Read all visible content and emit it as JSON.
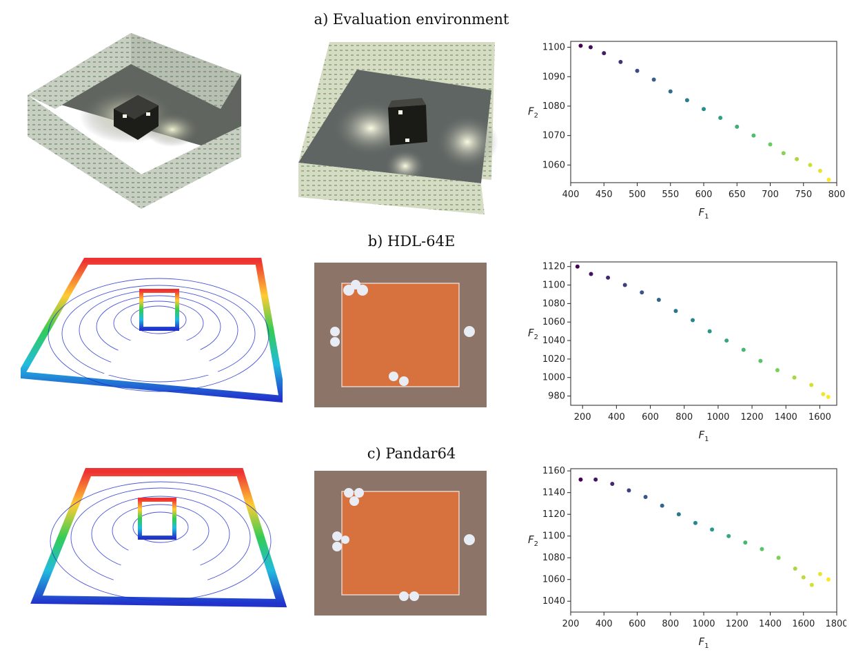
{
  "sections": [
    {
      "label": "a) Evaluation environment"
    },
    {
      "label": "b) HDL-64E"
    },
    {
      "label": "c) Pandar64"
    }
  ],
  "colors": {
    "wall_tile": "#d8dcd0",
    "floor": "#5a5f5c",
    "box": "#1a1b18",
    "lidar_blue": "#1a2ad0",
    "render_orange": "#d9723f",
    "viridis_start": "#440154",
    "viridis_end": "#fde725"
  },
  "chart_data": [
    {
      "type": "scatter",
      "title": "",
      "xlabel": "F1",
      "ylabel": "F2",
      "xlim": [
        400,
        800
      ],
      "ylim": [
        1054,
        1102
      ],
      "xticks": [
        400,
        450,
        500,
        550,
        600,
        650,
        700,
        750,
        800
      ],
      "yticks": [
        1060,
        1070,
        1080,
        1090,
        1100
      ],
      "colormap": "viridis",
      "x": [
        415,
        430,
        450,
        475,
        500,
        525,
        550,
        575,
        600,
        625,
        650,
        675,
        700,
        720,
        740,
        760,
        775,
        788
      ],
      "y": [
        1100.5,
        1100,
        1098,
        1095,
        1092,
        1089,
        1085,
        1082,
        1079,
        1076,
        1073,
        1070,
        1067,
        1064,
        1062,
        1060,
        1058,
        1055
      ]
    },
    {
      "type": "scatter",
      "title": "",
      "xlabel": "F1",
      "ylabel": "F2",
      "xlim": [
        130,
        1700
      ],
      "ylim": [
        970,
        1125
      ],
      "xticks": [
        200,
        400,
        600,
        800,
        1000,
        1200,
        1400,
        1600
      ],
      "yticks": [
        980,
        1000,
        1020,
        1040,
        1060,
        1080,
        1100,
        1120
      ],
      "colormap": "viridis",
      "x": [
        170,
        250,
        350,
        450,
        550,
        650,
        750,
        850,
        950,
        1050,
        1150,
        1250,
        1350,
        1450,
        1550,
        1620,
        1650
      ],
      "y": [
        1120,
        1112,
        1108,
        1100,
        1092,
        1084,
        1072,
        1062,
        1050,
        1040,
        1030,
        1018,
        1008,
        1000,
        992,
        982,
        979
      ]
    },
    {
      "type": "scatter",
      "title": "",
      "xlabel": "F1",
      "ylabel": "F2",
      "xlim": [
        200,
        1800
      ],
      "ylim": [
        1030,
        1162
      ],
      "xticks": [
        200,
        400,
        600,
        800,
        1000,
        1200,
        1400,
        1600,
        1800
      ],
      "yticks": [
        1040,
        1060,
        1080,
        1100,
        1120,
        1140,
        1160
      ],
      "colormap": "viridis",
      "x": [
        260,
        350,
        450,
        550,
        650,
        750,
        850,
        950,
        1050,
        1150,
        1250,
        1350,
        1450,
        1550,
        1600,
        1650,
        1700,
        1750
      ],
      "y": [
        1152,
        1152,
        1148,
        1142,
        1136,
        1128,
        1120,
        1112,
        1106,
        1100,
        1094,
        1088,
        1080,
        1070,
        1062,
        1055,
        1065,
        1060
      ]
    }
  ]
}
